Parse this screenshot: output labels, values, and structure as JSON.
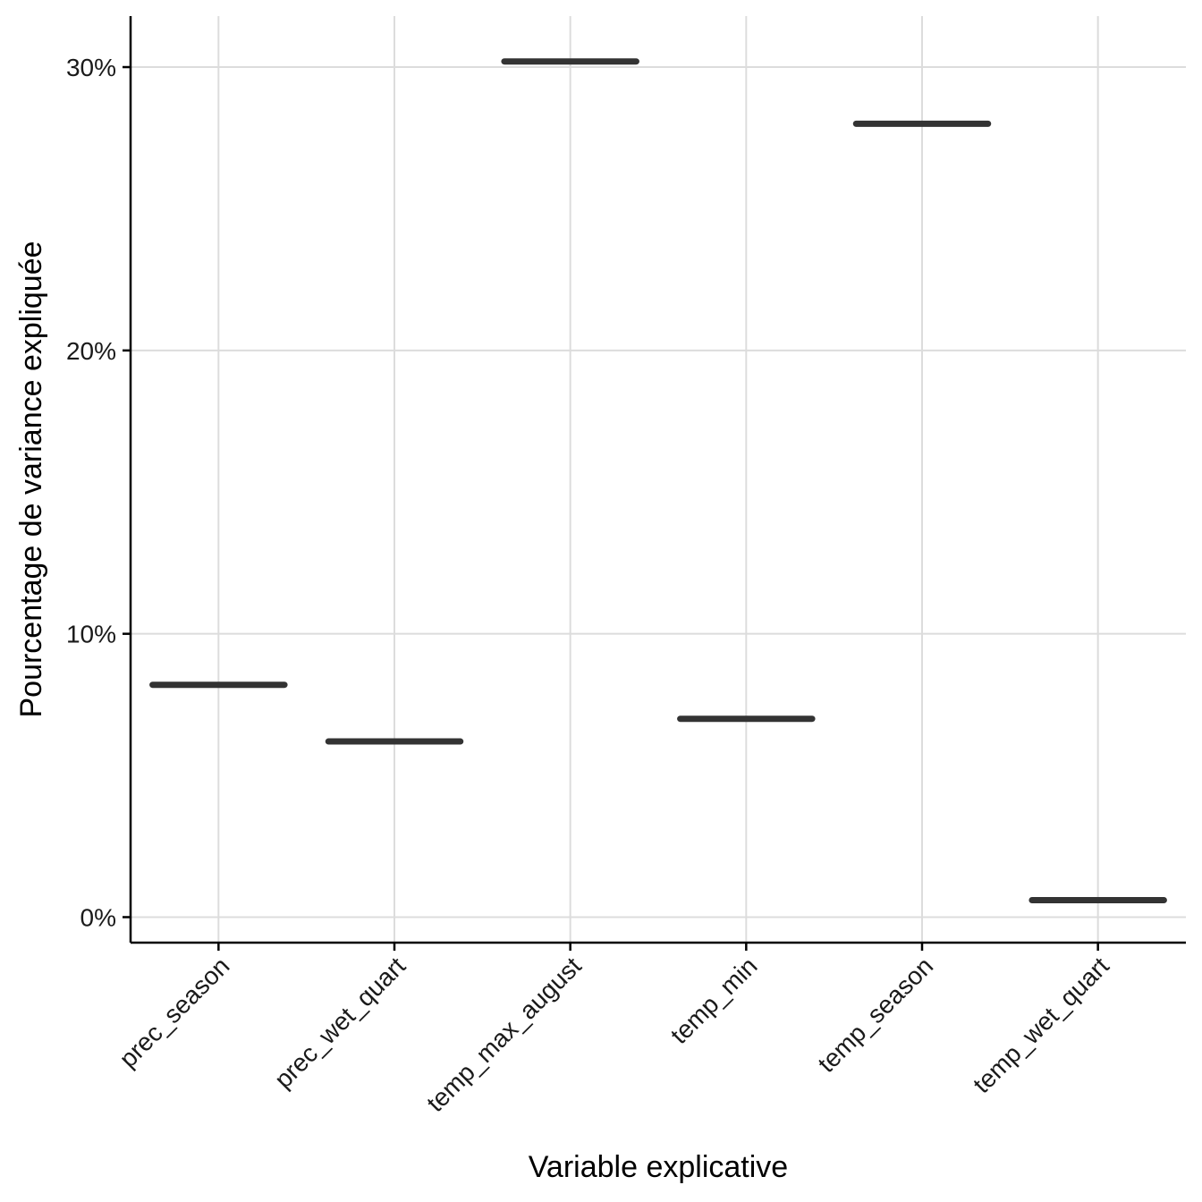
{
  "chart_data": {
    "type": "boxplot",
    "categories": [
      "prec_season",
      "prec_wet_quart",
      "temp_max_august",
      "temp_min",
      "temp_season",
      "temp_wet_quart"
    ],
    "values": [
      8.2,
      6.2,
      30.2,
      7.0,
      28.0,
      0.6
    ],
    "xlabel": "Variable explicative",
    "ylabel": "Pourcentage de variance expliquée",
    "ylim": [
      -0.9,
      31.8
    ],
    "yticks": [
      0,
      10,
      20,
      30
    ],
    "ytick_labels": [
      "0%",
      "10%",
      "20%",
      "30%"
    ],
    "grid": true,
    "colors": {
      "mark": "#333333",
      "grid": "#dcdcdc",
      "axis": "#000000"
    }
  }
}
